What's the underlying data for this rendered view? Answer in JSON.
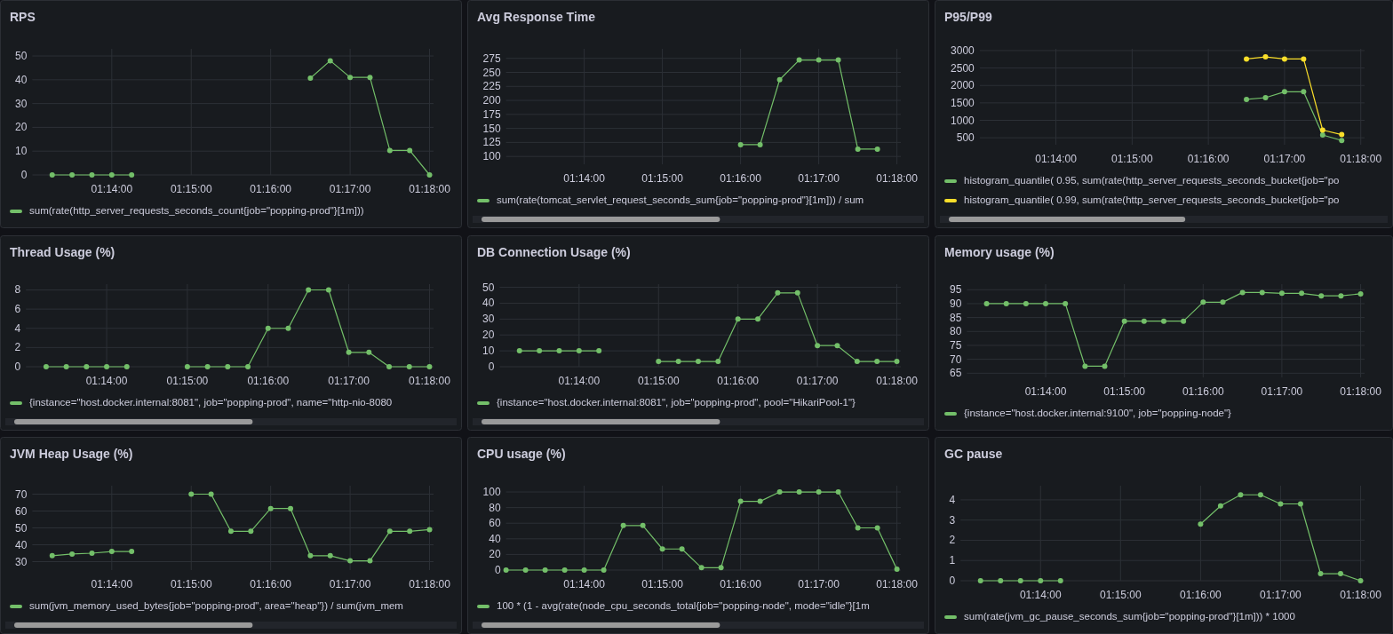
{
  "chart_data": [
    {
      "type": "line",
      "title": "RPS",
      "xlim": [
        1.216667,
        1.300833
      ],
      "xticks": [
        {
          "value": 1.233333,
          "label": "01:14:00"
        },
        {
          "value": 1.25,
          "label": "01:15:00"
        },
        {
          "value": 1.266667,
          "label": "01:16:00"
        },
        {
          "value": 1.283333,
          "label": "01:17:00"
        },
        {
          "value": 1.3,
          "label": "01:18:00"
        }
      ],
      "ylim": [
        0,
        53
      ],
      "yticks": [
        0,
        10,
        20,
        30,
        40,
        50
      ],
      "grid": true,
      "marker": "circle",
      "legend": "bottom",
      "series": [
        {
          "name": "sum(rate(http_server_requests_seconds_count{job=\"popping-prod\"}[1m]))",
          "color": "#73bf69",
          "x": [
            1.220833,
            1.225,
            1.229167,
            1.233333,
            1.2375,
            1.275,
            1.279167,
            1.283333,
            1.2875,
            1.291667,
            1.295833,
            1.3
          ],
          "values": [
            0,
            0,
            0,
            0,
            0,
            40.7,
            48,
            41,
            41,
            10.3,
            10.3,
            0
          ]
        }
      ]
    },
    {
      "type": "line",
      "title": "Avg Response Time",
      "xlim": [
        1.216667,
        1.300833
      ],
      "xticks": [
        {
          "value": 1.233333,
          "label": "01:14:00"
        },
        {
          "value": 1.25,
          "label": "01:15:00"
        },
        {
          "value": 1.266667,
          "label": "01:16:00"
        },
        {
          "value": 1.283333,
          "label": "01:17:00"
        },
        {
          "value": 1.3,
          "label": "01:18:00"
        }
      ],
      "ylim": [
        86,
        292
      ],
      "yticks": [
        100,
        125,
        150,
        175,
        200,
        225,
        250,
        275
      ],
      "grid": true,
      "marker": "circle",
      "legend": "bottom",
      "series": [
        {
          "name": "sum(rate(tomcat_servlet_request_seconds_sum{job=\"popping-prod\"}[1m])) / sum",
          "color": "#73bf69",
          "x": [
            1.266667,
            1.270833,
            1.275,
            1.279167,
            1.283333,
            1.2875,
            1.291667,
            1.295833
          ],
          "values": [
            121,
            121,
            237,
            272,
            272,
            272,
            113,
            113
          ]
        }
      ]
    },
    {
      "type": "line",
      "title": "P95/P99",
      "xlim": [
        1.216667,
        1.300833
      ],
      "xticks": [
        {
          "value": 1.233333,
          "label": "01:14:00"
        },
        {
          "value": 1.25,
          "label": "01:15:00"
        },
        {
          "value": 1.266667,
          "label": "01:16:00"
        },
        {
          "value": 1.283333,
          "label": "01:17:00"
        },
        {
          "value": 1.3,
          "label": "01:18:00"
        }
      ],
      "ylim": [
        300,
        3050
      ],
      "yticks": [
        500,
        1000,
        1500,
        2000,
        2500,
        3000
      ],
      "grid": true,
      "marker": "circle",
      "legend": "bottom",
      "series": [
        {
          "name": "histogram_quantile( 0.95, sum(rate(http_server_requests_seconds_bucket{job=\"po",
          "color": "#73bf69",
          "x": [
            1.275,
            1.279167,
            1.283333,
            1.2875,
            1.291667,
            1.295833
          ],
          "values": [
            1600,
            1650,
            1820,
            1820,
            580,
            420
          ]
        },
        {
          "name": "histogram_quantile( 0.99, sum(rate(http_server_requests_seconds_bucket{job=\"po",
          "color": "#fade2a",
          "x": [
            1.275,
            1.279167,
            1.283333,
            1.2875,
            1.291667,
            1.295833
          ],
          "values": [
            2760,
            2820,
            2760,
            2760,
            720,
            590
          ]
        }
      ]
    },
    {
      "type": "line",
      "title": "Thread Usage (%)",
      "xlim": [
        1.216667,
        1.300833
      ],
      "xticks": [
        {
          "value": 1.233333,
          "label": "01:14:00"
        },
        {
          "value": 1.25,
          "label": "01:15:00"
        },
        {
          "value": 1.266667,
          "label": "01:16:00"
        },
        {
          "value": 1.283333,
          "label": "01:17:00"
        },
        {
          "value": 1.3,
          "label": "01:18:00"
        }
      ],
      "ylim": [
        0,
        8.6
      ],
      "yticks": [
        0,
        2,
        4,
        6,
        8
      ],
      "grid": true,
      "marker": "circle",
      "legend": "bottom",
      "series": [
        {
          "name": "{instance=\"host.docker.internal:8081\", job=\"popping-prod\", name=\"http-nio-8080",
          "color": "#73bf69",
          "x": [
            1.220833,
            1.225,
            1.229167,
            1.233333,
            1.2375,
            1.25,
            1.254167,
            1.258333,
            1.2625,
            1.266667,
            1.270833,
            1.275,
            1.279167,
            1.283333,
            1.2875,
            1.291667,
            1.295833,
            1.3
          ],
          "values": [
            0,
            0,
            0,
            0,
            0,
            0,
            0,
            0,
            0,
            4,
            4,
            8,
            8,
            1.5,
            1.5,
            0,
            0,
            0
          ]
        }
      ]
    },
    {
      "type": "line",
      "title": "DB Connection Usage (%)",
      "xlim": [
        1.216667,
        1.300833
      ],
      "xticks": [
        {
          "value": 1.233333,
          "label": "01:14:00"
        },
        {
          "value": 1.25,
          "label": "01:15:00"
        },
        {
          "value": 1.266667,
          "label": "01:16:00"
        },
        {
          "value": 1.283333,
          "label": "01:17:00"
        },
        {
          "value": 1.3,
          "label": "01:18:00"
        }
      ],
      "ylim": [
        0,
        52
      ],
      "yticks": [
        0,
        10,
        20,
        30,
        40,
        50
      ],
      "grid": true,
      "marker": "circle",
      "legend": "bottom",
      "series": [
        {
          "name": "{instance=\"host.docker.internal:8081\", job=\"popping-prod\", pool=\"HikariPool-1\"}",
          "color": "#73bf69",
          "x": [
            1.220833,
            1.225,
            1.229167,
            1.233333,
            1.2375,
            1.25,
            1.254167,
            1.258333,
            1.2625,
            1.266667,
            1.270833,
            1.275,
            1.279167,
            1.283333,
            1.2875,
            1.291667,
            1.295833,
            1.3
          ],
          "values": [
            10,
            10,
            10,
            10,
            10,
            3.3,
            3.3,
            3.3,
            3.3,
            30,
            30,
            46.5,
            46.5,
            13.3,
            13.3,
            3.3,
            3.3,
            3.3
          ]
        }
      ]
    },
    {
      "type": "line",
      "title": "Memory usage (%)",
      "xlim": [
        1.216667,
        1.300833
      ],
      "xticks": [
        {
          "value": 1.233333,
          "label": "01:14:00"
        },
        {
          "value": 1.25,
          "label": "01:15:00"
        },
        {
          "value": 1.266667,
          "label": "01:16:00"
        },
        {
          "value": 1.283333,
          "label": "01:17:00"
        },
        {
          "value": 1.3,
          "label": "01:18:00"
        }
      ],
      "ylim": [
        63.5,
        97
      ],
      "yticks": [
        65,
        70,
        75,
        80,
        85,
        90,
        95
      ],
      "grid": true,
      "marker": "circle",
      "legend": "bottom",
      "series": [
        {
          "name": "{instance=\"host.docker.internal:9100\", job=\"popping-node\"}",
          "color": "#73bf69",
          "x": [
            1.220833,
            1.225,
            1.229167,
            1.233333,
            1.2375,
            1.241667,
            1.245833,
            1.25,
            1.254167,
            1.258333,
            1.2625,
            1.266667,
            1.270833,
            1.275,
            1.279167,
            1.283333,
            1.2875,
            1.291667,
            1.295833,
            1.3
          ],
          "values": [
            90,
            90,
            90,
            90,
            90,
            67.5,
            67.5,
            83.7,
            83.7,
            83.7,
            83.7,
            90.5,
            90.5,
            94,
            94,
            93.7,
            93.7,
            92.8,
            92.8,
            93.5
          ]
        }
      ]
    },
    {
      "type": "line",
      "title": "JVM Heap Usage (%)",
      "xlim": [
        1.216667,
        1.300833
      ],
      "xticks": [
        {
          "value": 1.233333,
          "label": "01:14:00"
        },
        {
          "value": 1.25,
          "label": "01:15:00"
        },
        {
          "value": 1.266667,
          "label": "01:16:00"
        },
        {
          "value": 1.283333,
          "label": "01:17:00"
        },
        {
          "value": 1.3,
          "label": "01:18:00"
        }
      ],
      "ylim": [
        25,
        75
      ],
      "yticks": [
        30,
        40,
        50,
        60,
        70
      ],
      "grid": true,
      "marker": "circle",
      "legend": "bottom",
      "series": [
        {
          "name": "sum(jvm_memory_used_bytes{job=\"popping-prod\", area=\"heap\"}) / sum(jvm_mem",
          "color": "#73bf69",
          "x": [
            1.220833,
            1.225,
            1.229167,
            1.233333,
            1.2375,
            1.25,
            1.254167,
            1.258333,
            1.2625,
            1.266667,
            1.270833,
            1.275,
            1.279167,
            1.283333,
            1.2875,
            1.291667,
            1.295833,
            1.3
          ],
          "values": [
            33.5,
            34.5,
            35,
            36,
            36,
            70,
            70,
            48,
            48,
            61.5,
            61.5,
            33.5,
            33.5,
            30.5,
            30.5,
            48,
            48,
            49
          ]
        }
      ]
    },
    {
      "type": "line",
      "title": "CPU usage (%)",
      "xlim": [
        1.216667,
        1.300833
      ],
      "xticks": [
        {
          "value": 1.233333,
          "label": "01:14:00"
        },
        {
          "value": 1.25,
          "label": "01:15:00"
        },
        {
          "value": 1.266667,
          "label": "01:16:00"
        },
        {
          "value": 1.283333,
          "label": "01:17:00"
        },
        {
          "value": 1.3,
          "label": "01:18:00"
        }
      ],
      "ylim": [
        0,
        108
      ],
      "yticks": [
        0,
        20,
        40,
        60,
        80,
        100
      ],
      "grid": true,
      "marker": "circle",
      "legend": "bottom",
      "series": [
        {
          "name": "100 * (1 - avg(rate(node_cpu_seconds_total{job=\"popping-node\", mode=\"idle\"}[1m",
          "color": "#73bf69",
          "x": [
            1.216667,
            1.220833,
            1.225,
            1.229167,
            1.233333,
            1.2375,
            1.241667,
            1.245833,
            1.25,
            1.254167,
            1.258333,
            1.2625,
            1.266667,
            1.270833,
            1.275,
            1.279167,
            1.283333,
            1.2875,
            1.291667,
            1.295833,
            1.3
          ],
          "values": [
            0,
            0,
            0,
            0,
            0,
            0,
            57,
            57,
            27,
            27,
            3,
            3,
            88,
            88,
            100,
            100,
            100,
            100,
            54,
            54,
            1
          ]
        }
      ]
    },
    {
      "type": "line",
      "title": "GC pause",
      "xlim": [
        1.216667,
        1.300833
      ],
      "xticks": [
        {
          "value": 1.233333,
          "label": "01:14:00"
        },
        {
          "value": 1.25,
          "label": "01:15:00"
        },
        {
          "value": 1.266667,
          "label": "01:16:00"
        },
        {
          "value": 1.283333,
          "label": "01:17:00"
        },
        {
          "value": 1.3,
          "label": "01:18:00"
        }
      ],
      "ylim": [
        0,
        4.7
      ],
      "yticks": [
        0,
        1,
        2,
        3,
        4
      ],
      "grid": true,
      "marker": "circle",
      "legend": "bottom",
      "series": [
        {
          "name": "sum(rate(jvm_gc_pause_seconds_sum{job=\"popping-prod\"}[1m])) * 1000",
          "color": "#73bf69",
          "x": [
            1.220833,
            1.225,
            1.229167,
            1.233333,
            1.2375,
            1.266667,
            1.270833,
            1.275,
            1.279167,
            1.283333,
            1.2875,
            1.291667,
            1.295833,
            1.3
          ],
          "values": [
            0,
            0,
            0,
            0,
            0,
            2.8,
            3.7,
            4.25,
            4.25,
            3.8,
            3.8,
            0.35,
            0.35,
            0
          ]
        }
      ]
    }
  ]
}
